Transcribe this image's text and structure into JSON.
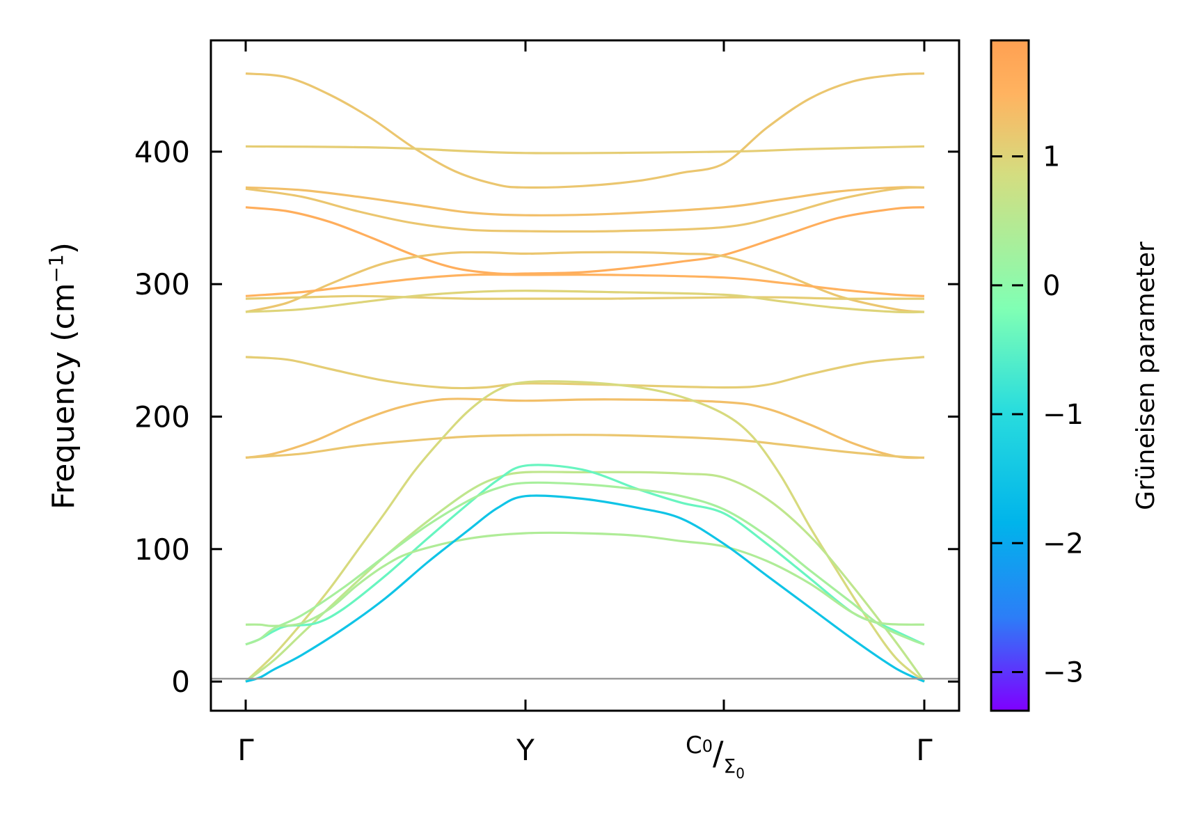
{
  "chart_data": {
    "type": "line",
    "title": "",
    "xlabel": "",
    "ylabel": "Frequency (cm",
    "ylabel_sup": "−1",
    "ylabel_close": ")",
    "ylim": [
      -22,
      484
    ],
    "yticks": [
      0,
      100,
      200,
      300,
      400
    ],
    "ytick_labels": [
      "0",
      "100",
      "200",
      "300",
      "400"
    ],
    "kpoints": [
      {
        "pos": 0.0,
        "label": "Γ"
      },
      {
        "pos": 1.0,
        "label": "Y"
      },
      {
        "pos": 1.7,
        "label_top": "C",
        "label_top_sub": "0",
        "label_slash": "/",
        "label_bottom": "Σ",
        "label_bottom_sub": "0"
      },
      {
        "pos": 2.4,
        "label": "Γ"
      }
    ],
    "colorbar": {
      "title": "Grüneisen parameter",
      "range": [
        -3.3,
        1.9
      ],
      "ticks": [
        1,
        0,
        -1,
        -2,
        -3
      ],
      "tick_labels": [
        "1",
        "0",
        "−1",
        "−2",
        "−3"
      ],
      "stops": [
        "#7f00ff",
        "#2c7ef7",
        "#00b4eb",
        "#2adddd",
        "#80ffb4",
        "#d4dd80",
        "#ffb360",
        "#ffa052"
      ]
    },
    "series": [
      {
        "name": "band-1",
        "gamma_color": 1.2,
        "x": [
          0,
          0.15,
          0.3,
          0.45,
          0.6,
          0.75,
          0.9,
          1.0,
          1.2,
          1.4,
          1.55,
          1.7,
          1.85,
          2.0,
          2.15,
          2.3,
          2.4
        ],
        "y": [
          459,
          456,
          443,
          425,
          403,
          385,
          375,
          373,
          374,
          378,
          384,
          391,
          418,
          440,
          453,
          458,
          459
        ]
      },
      {
        "name": "band-2",
        "gamma_color": 1.1,
        "x": [
          0,
          0.5,
          1.0,
          1.7,
          2.0,
          2.4
        ],
        "y": [
          404,
          403,
          399,
          400,
          402,
          404
        ]
      },
      {
        "name": "band-3",
        "gamma_color": 1.3,
        "x": [
          0,
          0.2,
          0.4,
          0.6,
          0.8,
          1.0,
          1.3,
          1.7,
          1.9,
          2.1,
          2.3,
          2.4
        ],
        "y": [
          373,
          371,
          366,
          360,
          354,
          352,
          353,
          358,
          364,
          370,
          373,
          373
        ]
      },
      {
        "name": "band-4",
        "gamma_color": 1.2,
        "x": [
          0,
          0.2,
          0.4,
          0.6,
          0.8,
          1.0,
          1.3,
          1.7,
          1.9,
          2.1,
          2.3,
          2.4
        ],
        "y": [
          372,
          366,
          355,
          346,
          341,
          340,
          340,
          343,
          352,
          364,
          372,
          373
        ]
      },
      {
        "name": "band-5",
        "gamma_color": 1.6,
        "x": [
          0,
          0.15,
          0.3,
          0.45,
          0.6,
          0.75,
          0.9,
          1.0,
          1.2,
          1.4,
          1.55,
          1.7,
          1.9,
          2.1,
          2.3,
          2.4
        ],
        "y": [
          358,
          355,
          347,
          335,
          322,
          312,
          308,
          308,
          309,
          313,
          317,
          322,
          336,
          350,
          357,
          358
        ]
      },
      {
        "name": "band-6",
        "gamma_color": 1.2,
        "x": [
          0,
          0.15,
          0.3,
          0.5,
          0.7,
          0.85,
          1.0,
          1.2,
          1.4,
          1.55,
          1.7,
          1.9,
          2.1,
          2.3,
          2.4
        ],
        "y": [
          279,
          286,
          300,
          316,
          323,
          324,
          323,
          324,
          324,
          323,
          321,
          308,
          291,
          281,
          279
        ]
      },
      {
        "name": "band-7",
        "gamma_color": 1.5,
        "x": [
          0,
          0.2,
          0.4,
          0.6,
          0.8,
          1.0,
          1.3,
          1.7,
          1.9,
          2.1,
          2.3,
          2.4
        ],
        "y": [
          291,
          294,
          299,
          304,
          307,
          307,
          307,
          305,
          301,
          296,
          292,
          291
        ]
      },
      {
        "name": "band-8",
        "gamma_color": 1.1,
        "x": [
          0,
          0.2,
          0.4,
          0.6,
          0.8,
          1.0,
          1.3,
          1.7,
          1.9,
          2.1,
          2.3,
          2.4
        ],
        "y": [
          289,
          290,
          291,
          290,
          289,
          289,
          289,
          290,
          290,
          289,
          289,
          289
        ]
      },
      {
        "name": "band-9",
        "gamma_color": 1.0,
        "x": [
          0,
          0.2,
          0.4,
          0.6,
          0.8,
          1.0,
          1.3,
          1.7,
          1.9,
          2.1,
          2.3,
          2.4
        ],
        "y": [
          279,
          281,
          286,
          291,
          294,
          295,
          294,
          292,
          287,
          282,
          279,
          279
        ]
      },
      {
        "name": "band-10",
        "gamma_color": 1.1,
        "x": [
          0,
          0.15,
          0.3,
          0.5,
          0.7,
          0.85,
          1.0,
          1.3,
          1.7,
          1.85,
          2.0,
          2.2,
          2.4
        ],
        "y": [
          245,
          243,
          236,
          227,
          222,
          222,
          225,
          224,
          222,
          224,
          232,
          241,
          245
        ]
      },
      {
        "name": "band-11",
        "gamma_color": 1.3,
        "x": [
          0,
          0.1,
          0.25,
          0.4,
          0.55,
          0.7,
          0.85,
          1.0,
          1.3,
          1.7,
          1.85,
          2.0,
          2.15,
          2.3,
          2.4
        ],
        "y": [
          169,
          172,
          182,
          196,
          207,
          213,
          213,
          212,
          213,
          211,
          206,
          194,
          180,
          170,
          169
        ]
      },
      {
        "name": "band-12",
        "gamma_color": 1.2,
        "x": [
          0,
          0.2,
          0.4,
          0.6,
          0.8,
          1.0,
          1.3,
          1.7,
          1.9,
          2.1,
          2.3,
          2.4
        ],
        "y": [
          169,
          172,
          178,
          182,
          185,
          186,
          186,
          183,
          179,
          174,
          170,
          169
        ]
      },
      {
        "name": "band-13",
        "gamma_color": 0.9,
        "x": [
          0,
          0.1,
          0.2,
          0.3,
          0.4,
          0.5,
          0.6,
          0.7,
          0.8,
          0.9,
          1.0,
          1.2,
          1.4,
          1.55,
          1.7,
          1.8,
          1.9,
          2.0,
          2.1,
          2.2,
          2.3,
          2.4
        ],
        "y": [
          0,
          20,
          44,
          70,
          99,
          128,
          158,
          183,
          205,
          220,
          226,
          226,
          222,
          215,
          202,
          185,
          155,
          117,
          82,
          48,
          18,
          0
        ]
      },
      {
        "name": "band-14",
        "gamma_color": 0.6,
        "x": [
          0,
          0.1,
          0.2,
          0.35,
          0.5,
          0.65,
          0.8,
          0.9,
          1.0,
          1.2,
          1.4,
          1.55,
          1.7,
          1.85,
          2.0,
          2.15,
          2.3,
          2.4
        ],
        "y": [
          0,
          16,
          36,
          66,
          95,
          121,
          144,
          154,
          158,
          158,
          158,
          157,
          154,
          138,
          110,
          72,
          30,
          0
        ]
      },
      {
        "name": "band-15",
        "gamma_color": -0.4,
        "x": [
          0,
          0.05,
          0.1,
          0.15,
          0.25,
          0.35,
          0.5,
          0.65,
          0.8,
          0.9,
          1.0,
          1.2,
          1.4,
          1.55,
          1.7,
          1.85,
          2.0,
          2.15,
          2.25,
          2.35,
          2.4
        ],
        "y": [
          28,
          32,
          38,
          42,
          44,
          55,
          80,
          108,
          135,
          152,
          163,
          160,
          145,
          135,
          127,
          104,
          78,
          52,
          43,
          33,
          28
        ]
      },
      {
        "name": "band-16",
        "gamma_color": 0.3,
        "x": [
          0,
          0.05,
          0.1,
          0.2,
          0.35,
          0.5,
          0.65,
          0.8,
          0.9,
          1.0,
          1.2,
          1.4,
          1.55,
          1.7,
          1.85,
          2.0,
          2.15,
          2.25,
          2.35,
          2.4
        ],
        "y": [
          28,
          32,
          40,
          50,
          71,
          95,
          118,
          137,
          146,
          150,
          149,
          145,
          140,
          130,
          110,
          84,
          59,
          42,
          32,
          28
        ]
      },
      {
        "name": "band-17",
        "gamma_color": 0.4,
        "x": [
          0,
          0.05,
          0.1,
          0.2,
          0.3,
          0.4,
          0.5,
          0.6,
          0.8,
          1.0,
          1.2,
          1.4,
          1.55,
          1.7,
          1.85,
          2.0,
          2.15,
          2.25,
          2.4
        ],
        "y": [
          43,
          43,
          42,
          44,
          55,
          73,
          88,
          98,
          108,
          112,
          112,
          110,
          106,
          102,
          91,
          74,
          52,
          44,
          43
        ]
      },
      {
        "name": "band-18",
        "gamma_color": -1.5,
        "x": [
          0,
          0.05,
          0.1,
          0.2,
          0.35,
          0.5,
          0.65,
          0.8,
          0.9,
          1.0,
          1.2,
          1.4,
          1.55,
          1.7,
          1.85,
          2.0,
          2.15,
          2.3,
          2.4
        ],
        "y": [
          0,
          3,
          9,
          20,
          40,
          63,
          90,
          115,
          131,
          140,
          138,
          131,
          123,
          104,
          80,
          56,
          32,
          10,
          0
        ]
      }
    ]
  }
}
